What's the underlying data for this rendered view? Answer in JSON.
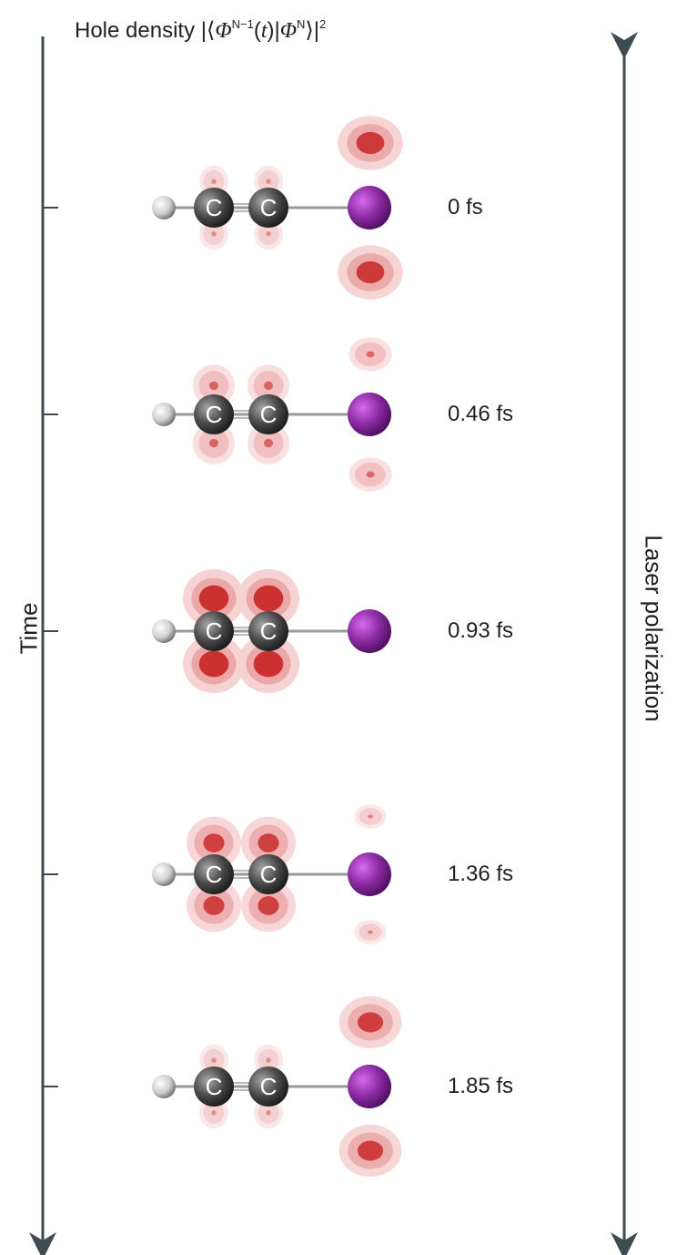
{
  "title": {
    "prefix": "Hole density |⟨",
    "phi": "Φ",
    "sup1": "N−1",
    "open_paren": "(",
    "t": "t",
    "mid": ")|",
    "sup2": "N",
    "close": "⟩|",
    "sup3": "2"
  },
  "left_axis_label": "Time",
  "right_axis_label": "Laser polarization",
  "atom_label": "C",
  "snapshots": [
    {
      "time": "0 fs",
      "ccDensity": 0.1,
      "iDensity": 0.9
    },
    {
      "time": "0.46 fs",
      "ccDensity": 0.45,
      "iDensity": 0.4
    },
    {
      "time": "0.93 fs",
      "ccDensity": 1.0,
      "iDensity": 0.0
    },
    {
      "time": "1.36 fs",
      "ccDensity": 0.8,
      "iDensity": 0.15
    },
    {
      "time": "1.85 fs",
      "ccDensity": 0.1,
      "iDensity": 0.85
    }
  ],
  "colors": {
    "axis": "#3d4b52",
    "hydrogen": "#d8d8d8",
    "carbon": "#4a4a4a",
    "iodine": "#8a2aa0",
    "density_outer": "#f6d2d2",
    "density_inner": "#c92a2a"
  }
}
